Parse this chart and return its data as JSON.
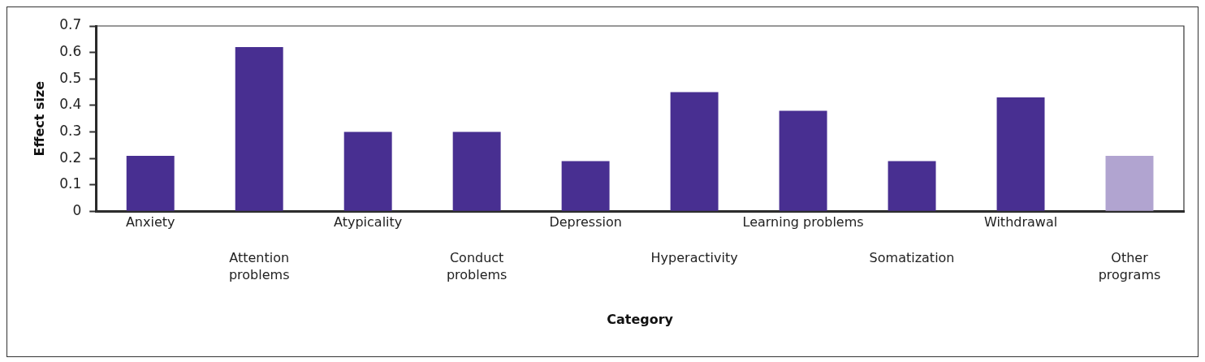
{
  "chart_data": {
    "type": "bar",
    "xlabel": "Category",
    "ylabel": "Effect size",
    "categories": [
      "Anxiety",
      "Attention problems",
      "Atypicality",
      "Conduct problems",
      "Depression",
      "Hyperactivity",
      "Learning problems",
      "Somatization",
      "Withdrawal",
      "Other programs"
    ],
    "values": [
      0.21,
      0.62,
      0.3,
      0.3,
      0.19,
      0.45,
      0.38,
      0.19,
      0.43,
      0.21
    ],
    "colors": [
      "#482f91",
      "#482f91",
      "#482f91",
      "#482f91",
      "#482f91",
      "#482f91",
      "#482f91",
      "#482f91",
      "#482f91",
      "#b1a4d0"
    ],
    "ylim": [
      0,
      0.7
    ],
    "yticks": [
      0,
      0.1,
      0.2,
      0.3,
      0.4,
      0.5,
      0.6,
      0.7
    ],
    "grid": false,
    "legend": false
  }
}
